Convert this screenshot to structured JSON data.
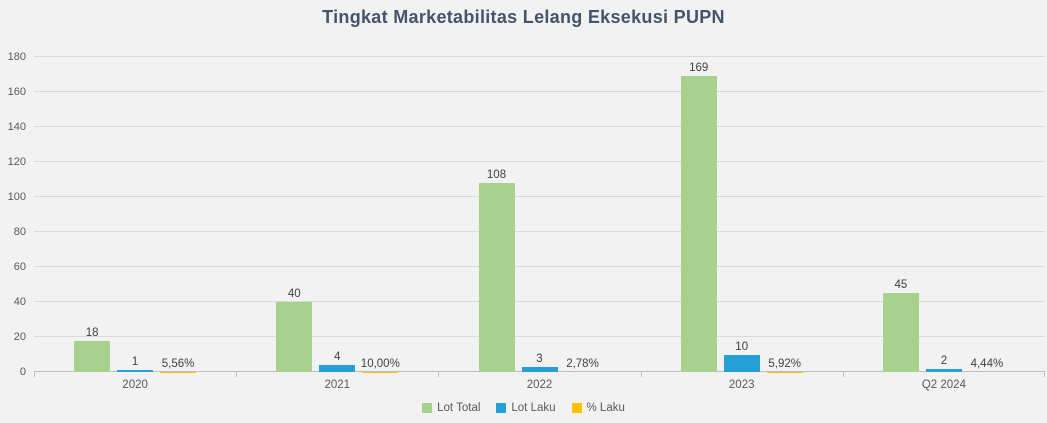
{
  "chart_data": {
    "type": "bar",
    "title": "Tingkat Marketabilitas Lelang Eksekusi PUPN",
    "categories": [
      "2020",
      "2021",
      "2022",
      "2023",
      "Q2 2024"
    ],
    "series": [
      {
        "name": "Lot Total",
        "color": "#a9d18e",
        "values": [
          18,
          40,
          108,
          169,
          45
        ],
        "labels": [
          "18",
          "40",
          "108",
          "169",
          "45"
        ]
      },
      {
        "name": "Lot Laku",
        "color": "#27a0da",
        "values": [
          1,
          4,
          3,
          10,
          2
        ],
        "labels": [
          "1",
          "4",
          "3",
          "10",
          "2"
        ]
      },
      {
        "name": "% Laku",
        "color": "#ffc000",
        "values": [
          0.0556,
          0.1,
          0.0278,
          0.0592,
          0.0444
        ],
        "labels": [
          "5,56%",
          "10,00%",
          "2,78%",
          "5,92%",
          "4,44%"
        ]
      }
    ],
    "ylim": [
      0,
      180
    ],
    "y_ticks": [
      0,
      20,
      40,
      60,
      80,
      100,
      120,
      140,
      160,
      180
    ],
    "grid": true,
    "legend_position": "bottom"
  },
  "colors": {
    "background": "#f2f2f2",
    "title": "#44546a",
    "gridline": "#d9d9d9",
    "axis_line": "#bfbfbf",
    "axis_text": "#595959",
    "data_label": "#404040"
  }
}
